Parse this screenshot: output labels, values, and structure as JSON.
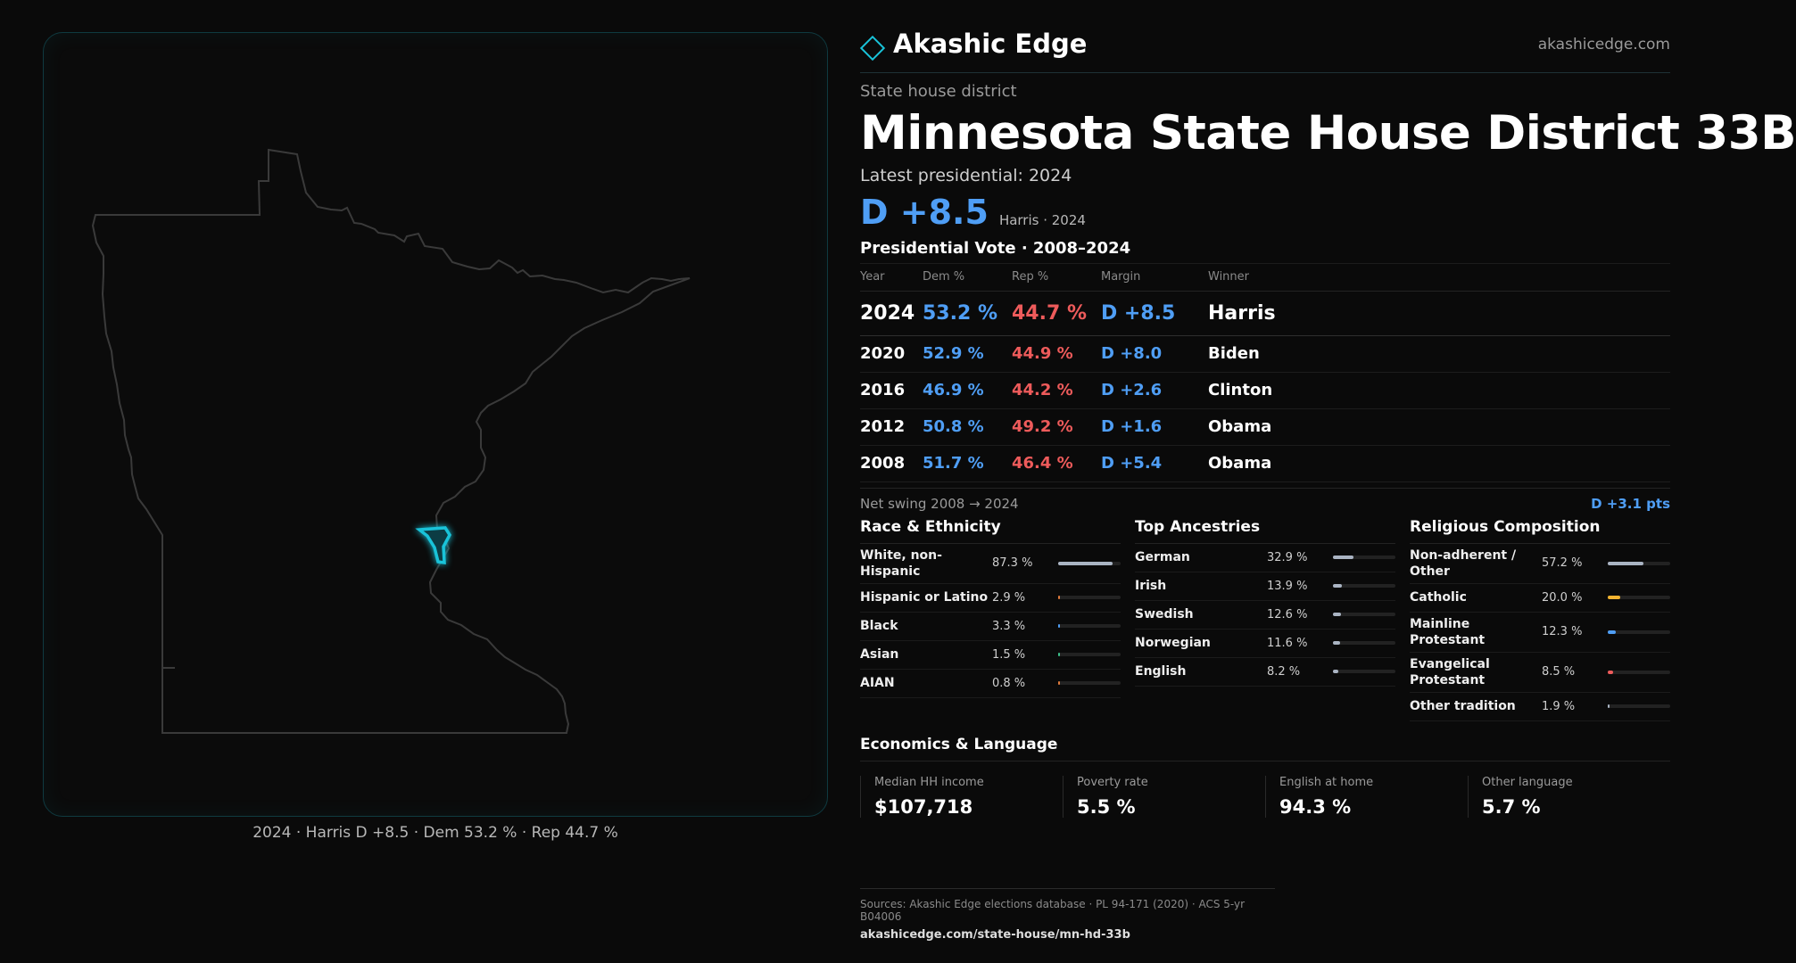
{
  "brand": {
    "name": "Akashic Edge",
    "url": "akashicedge.com"
  },
  "eyebrow": "State house district",
  "title": "Minnesota State House District 33B",
  "latest_label": "Latest presidential: 2024",
  "headline_margin": "D +8.5",
  "headline_sub": "Harris · 2024",
  "map_caption": "2024 · Harris D +8.5 · Dem 53.2 % · Rep 44.7 %",
  "presidential": {
    "title": "Presidential Vote · 2008–2024",
    "headers": {
      "year": "Year",
      "dem": "Dem %",
      "rep": "Rep %",
      "margin": "Margin",
      "winner": "Winner"
    },
    "rows": [
      {
        "year": "2024",
        "dem": "53.2 %",
        "rep": "44.7 %",
        "margin": "D +8.5",
        "winner": "Harris"
      },
      {
        "year": "2020",
        "dem": "52.9 %",
        "rep": "44.9 %",
        "margin": "D +8.0",
        "winner": "Biden"
      },
      {
        "year": "2016",
        "dem": "46.9 %",
        "rep": "44.2 %",
        "margin": "D +2.6",
        "winner": "Clinton"
      },
      {
        "year": "2012",
        "dem": "50.8 %",
        "rep": "49.2 %",
        "margin": "D +1.6",
        "winner": "Obama"
      },
      {
        "year": "2008",
        "dem": "51.7 %",
        "rep": "46.4 %",
        "margin": "D +5.4",
        "winner": "Obama"
      }
    ]
  },
  "swing": {
    "label": "Net swing 2008 → 2024",
    "value": "D +3.1 pts"
  },
  "race": {
    "title": "Race & Ethnicity",
    "items": [
      {
        "label": "White, non-Hispanic",
        "value": "87.3 %",
        "fraction": 0.873,
        "color": "#aab4c3"
      },
      {
        "label": "Hispanic or Latino",
        "value": "2.9 %",
        "fraction": 0.029,
        "color": "#e07a3c"
      },
      {
        "label": "Black",
        "value": "3.3 %",
        "fraction": 0.033,
        "color": "#4f9ef5"
      },
      {
        "label": "Asian",
        "value": "1.5 %",
        "fraction": 0.015,
        "color": "#3bbf8a"
      },
      {
        "label": "AIAN",
        "value": "0.8 %",
        "fraction": 0.008,
        "color": "#e07a3c"
      }
    ]
  },
  "ancestry": {
    "title": "Top Ancestries",
    "items": [
      {
        "label": "German",
        "value": "32.9 %",
        "fraction": 0.329,
        "color": "#aab4c3"
      },
      {
        "label": "Irish",
        "value": "13.9 %",
        "fraction": 0.139,
        "color": "#aab4c3"
      },
      {
        "label": "Swedish",
        "value": "12.6 %",
        "fraction": 0.126,
        "color": "#aab4c3"
      },
      {
        "label": "Norwegian",
        "value": "11.6 %",
        "fraction": 0.116,
        "color": "#aab4c3"
      },
      {
        "label": "English",
        "value": "8.2 %",
        "fraction": 0.082,
        "color": "#aab4c3"
      }
    ]
  },
  "religion": {
    "title": "Religious Composition",
    "items": [
      {
        "label": "Non-adherent / Other",
        "value": "57.2 %",
        "fraction": 0.572,
        "color": "#aab4c3"
      },
      {
        "label": "Catholic",
        "value": "20.0 %",
        "fraction": 0.2,
        "color": "#f2b330"
      },
      {
        "label": "Mainline Protestant",
        "value": "12.3 %",
        "fraction": 0.123,
        "color": "#4f9ef5"
      },
      {
        "label": "Evangelical Protestant",
        "value": "8.5 %",
        "fraction": 0.085,
        "color": "#ee5b5b"
      },
      {
        "label": "Other tradition",
        "value": "1.9 %",
        "fraction": 0.019,
        "color": "#aab4c3"
      }
    ]
  },
  "economics": {
    "title": "Economics & Language",
    "items": [
      {
        "label": "Median HH income",
        "value": "$107,718"
      },
      {
        "label": "Poverty rate",
        "value": "5.5 %"
      },
      {
        "label": "English at home",
        "value": "94.3 %"
      },
      {
        "label": "Other language",
        "value": "5.7 %"
      }
    ]
  },
  "footer": {
    "sources": "Sources: Akashic Edge elections database · PL 94-171 (2020) · ACS 5-yr B04006",
    "url": "akashicedge.com/state-house/mn-hd-33b"
  },
  "colors": {
    "accent": "#19c3d9",
    "dem": "#4f9ef5",
    "rep": "#ee5b5b"
  }
}
